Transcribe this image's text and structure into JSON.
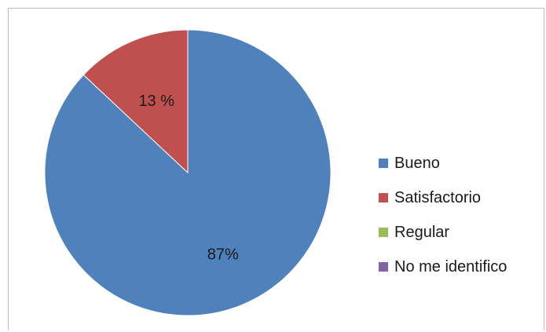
{
  "chart_data": {
    "type": "pie",
    "title": "",
    "categories": [
      "Bueno",
      "Satisfactorio",
      "Regular",
      "No me identifico"
    ],
    "values": [
      87,
      13,
      0,
      0
    ],
    "data_labels": [
      "87%",
      "13 %",
      "",
      ""
    ],
    "colors": [
      "#4f81bd",
      "#c0504d",
      "#9bbb59",
      "#8064a2"
    ],
    "legend_position": "right",
    "start_angle": "12 o'clock",
    "direction": "clockwise"
  }
}
